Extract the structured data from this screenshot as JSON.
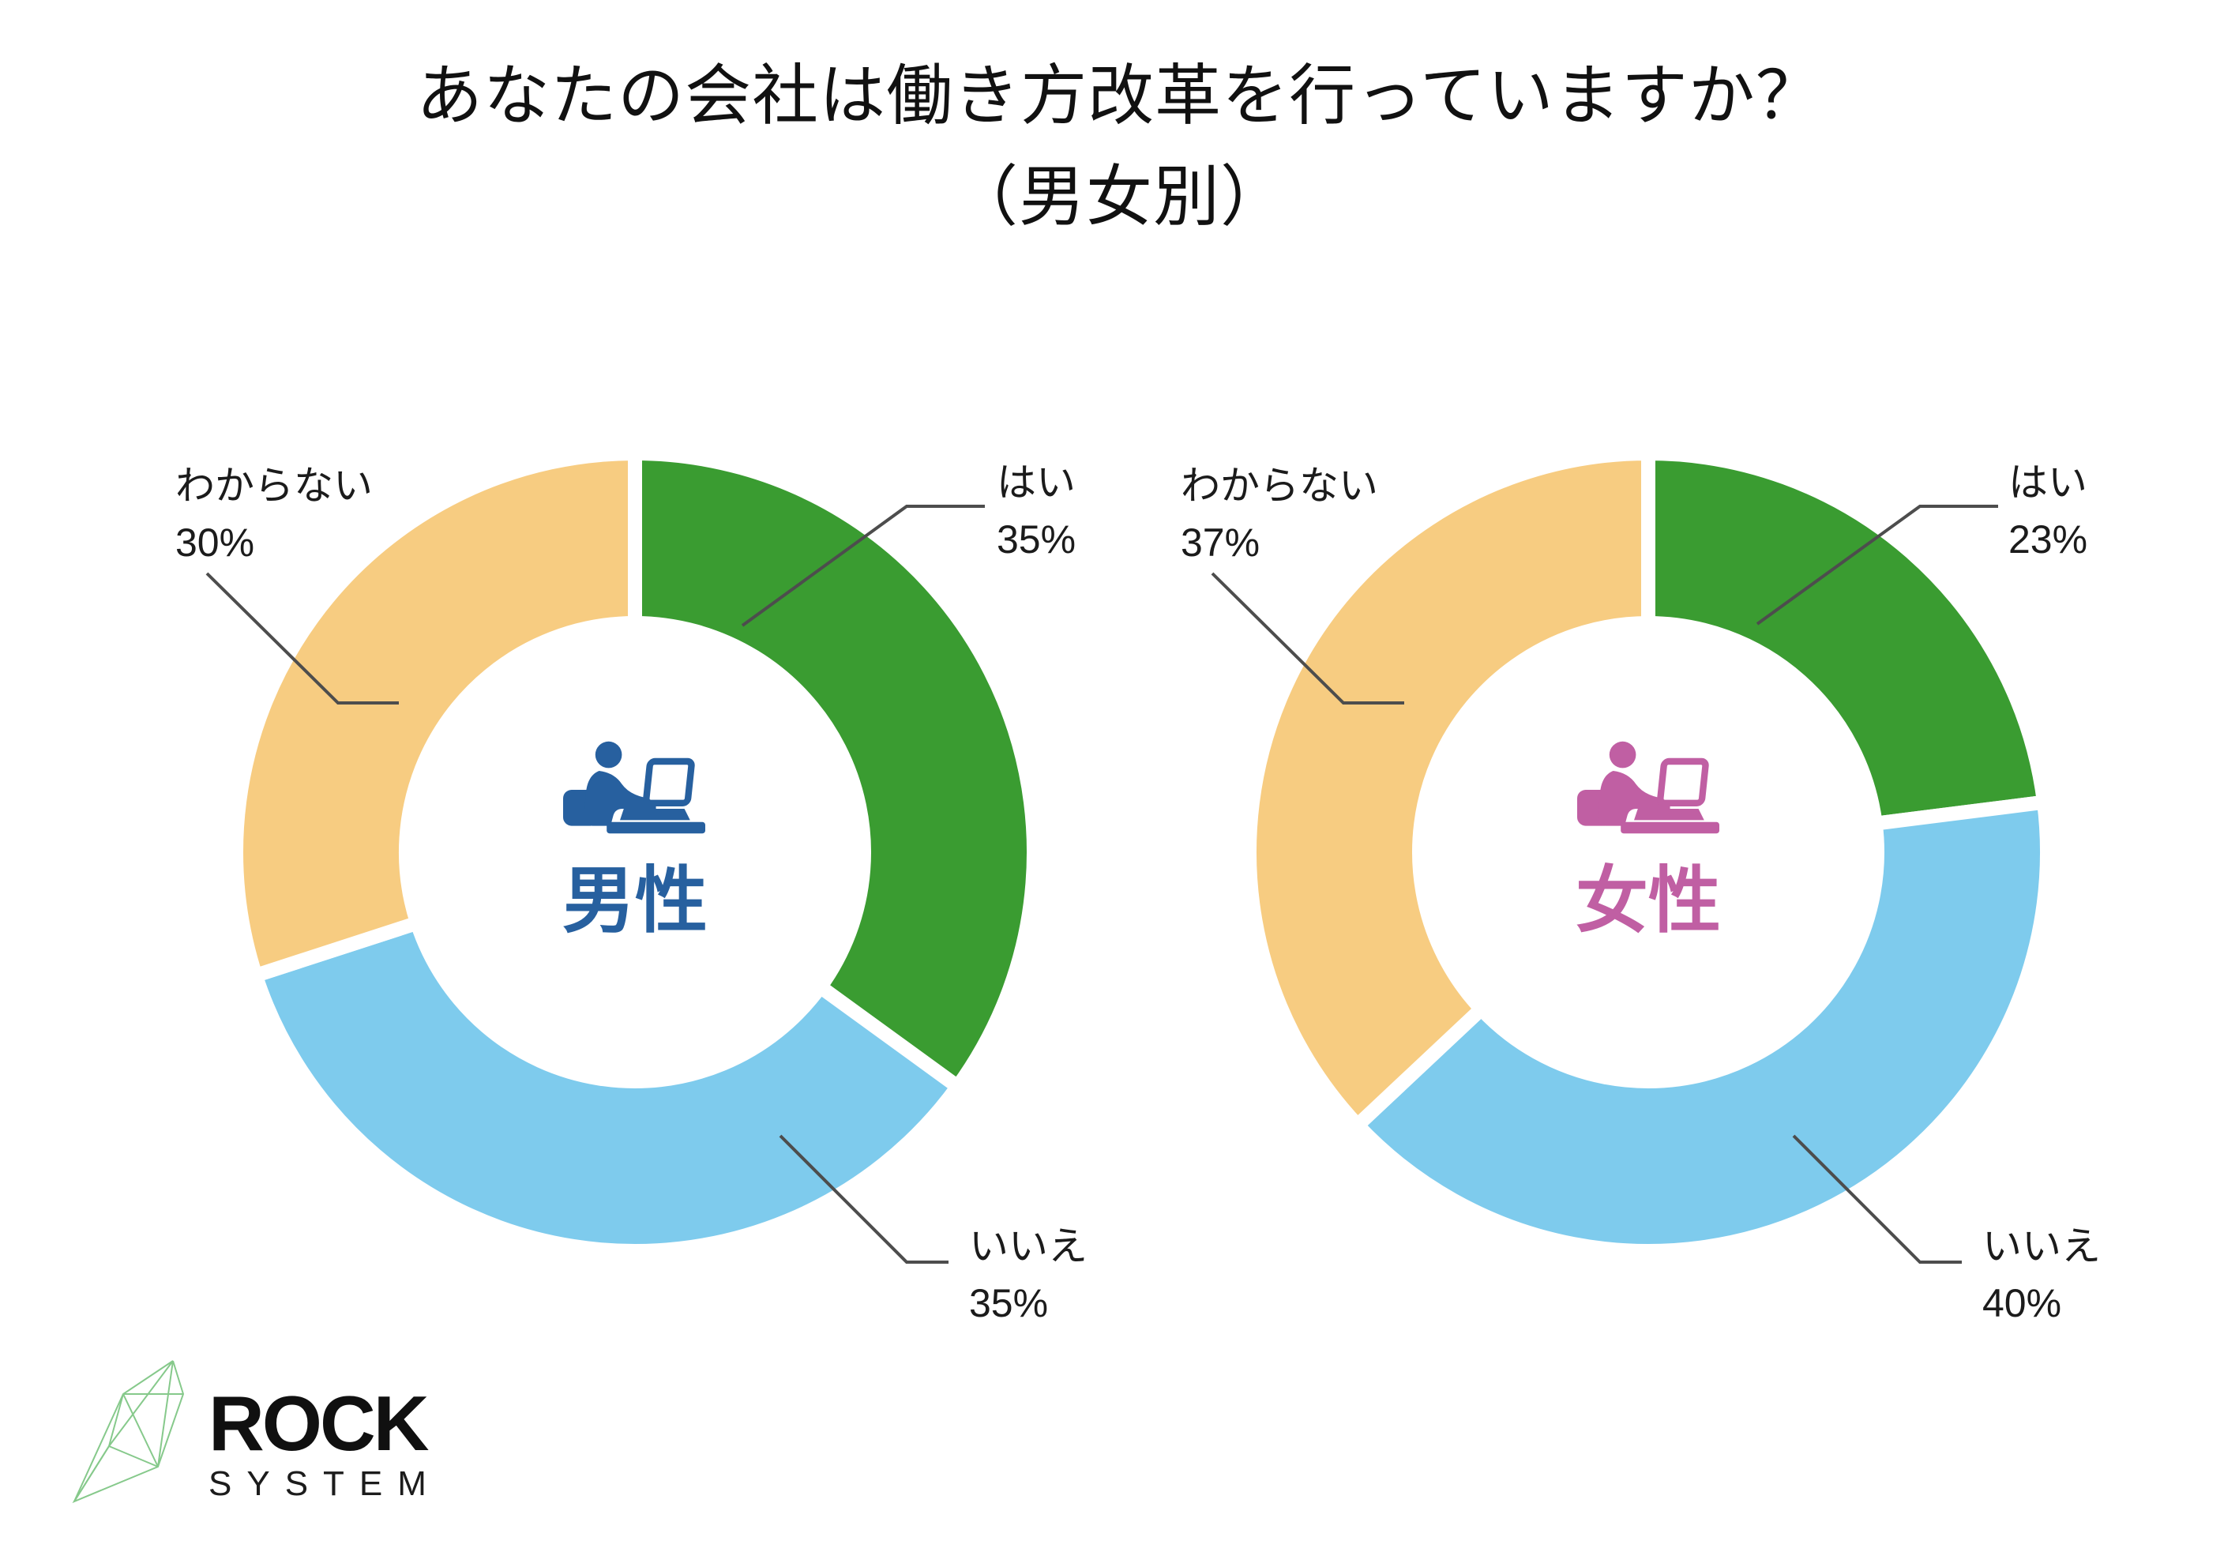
{
  "title": {
    "line1": "あなたの会社は働き方改革を行っていますか？",
    "line2": "（男女別）"
  },
  "chart_data": [
    {
      "type": "pie",
      "donut": true,
      "title": "男性",
      "center_label": "男性",
      "center_color": "#27609f",
      "icon": "person-at-laptop-icon",
      "start_angle_deg": 0,
      "direction": "clockwise",
      "categories": [
        "はい",
        "いいえ",
        "わからない"
      ],
      "values": [
        35,
        35,
        30
      ],
      "slices": [
        {
          "label": "はい",
          "value": 35,
          "pct_text": "35%",
          "color": "#3a9c31"
        },
        {
          "label": "いいえ",
          "value": 35,
          "pct_text": "35%",
          "color": "#7ecbed"
        },
        {
          "label": "わからない",
          "value": 30,
          "pct_text": "30%",
          "color": "#f7cc81"
        }
      ]
    },
    {
      "type": "pie",
      "donut": true,
      "title": "女性",
      "center_label": "女性",
      "center_color": "#c05fa3",
      "icon": "person-at-laptop-icon",
      "start_angle_deg": 0,
      "direction": "clockwise",
      "categories": [
        "はい",
        "いいえ",
        "わからない"
      ],
      "values": [
        23,
        40,
        37
      ],
      "slices": [
        {
          "label": "はい",
          "value": 23,
          "pct_text": "23%",
          "color": "#3a9c31"
        },
        {
          "label": "いいえ",
          "value": 40,
          "pct_text": "40%",
          "color": "#7ecbed"
        },
        {
          "label": "わからない",
          "value": 37,
          "pct_text": "37%",
          "color": "#f7cc81"
        }
      ]
    }
  ],
  "logo": {
    "brand": "ROCK",
    "sub": "SYSTEM",
    "icon": "crystal-icon",
    "icon_color": "#86c98b"
  },
  "colors": {
    "leader_line": "#4d4d4d",
    "label_text": "#1b1b1b"
  }
}
